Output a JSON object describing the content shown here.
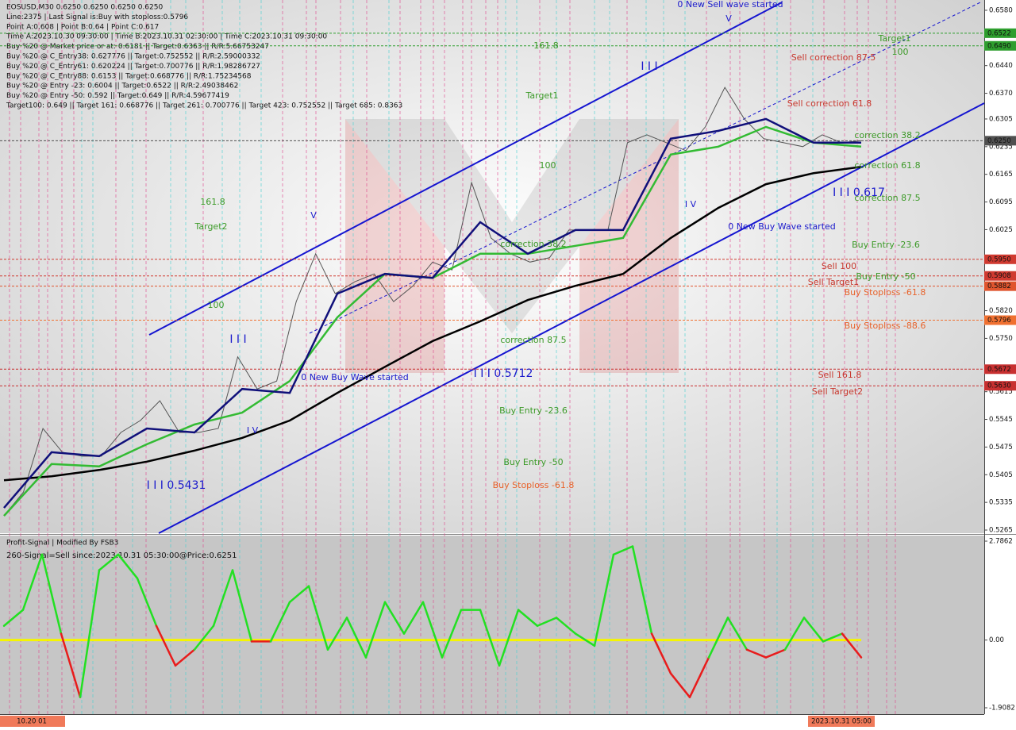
{
  "header": {
    "lines": [
      "EOSUSD,M30  0.6250 0.6250 0.6250 0.6250",
      "Line:2375 | Last Signal is:Buy with stoploss:0.5796",
      "Point A:0.608 | Point B:0.64 | Point C:0.617",
      "Time A:2023.10.30 09:30:00 | Time B:2023.10.31 02:30:00 | Time C:2023.10.31 09:30:00",
      "Buy %20 @ Market price or at: 0.6181 || Target:0.6363 || R/R:5.66753247",
      "Buy %20 @ C_Entry38: 0.627776 || Target:0.752552 || R/R:2.59000332",
      "Buy %20 @ C_Entry61: 0.620224 || Target:0.700776 || R/R:1.98286727",
      "Buy %20 @ C_Entry88: 0.6153 || Target:0.668776 || R/R:1.75234568",
      "Buy %20 @ Entry -23: 0.6004 || Target:0.6522 || R/R:2.49038462",
      "Buy %20 @ Entry -50: 0.592 || Target:0.649 || R/R:4.59677419",
      "Target100: 0.649 || Target 161: 0.668776 || Target 261: 0.700776 || Target 423: 0.752552 || Target 685: 0.8363"
    ]
  },
  "chart_data": [
    {
      "type": "line",
      "ylim": [
        0.5257,
        0.6606
      ],
      "yticks": [
        {
          "value": 0.658,
          "label": "0.6580"
        },
        {
          "value": 0.644,
          "label": "0.6440"
        },
        {
          "value": 0.637,
          "label": "0.6370"
        },
        0.6305,
        0.6235,
        0.6165,
        0.6095,
        0.6025,
        {
          "value": 0.582,
          "label": "0.5820"
        },
        {
          "value": 0.575,
          "label": "0.5750"
        },
        0.5615,
        0.5545,
        0.5475,
        0.5405,
        0.5335,
        0.5265
      ],
      "levels": [
        {
          "value": 0.6522,
          "color": "#2e9e2e"
        },
        {
          "value": 0.649,
          "label": "0.6490",
          "color": "#2e9e2e"
        },
        {
          "value": 0.625,
          "label": "0.6250",
          "color": "#505050"
        },
        {
          "value": 0.595,
          "label": "0.5950",
          "color": "#d03a30"
        },
        {
          "value": 0.5908,
          "color": "#d03a30"
        },
        {
          "value": 0.5882,
          "color": "#e0552e"
        },
        {
          "value": 0.5796,
          "color": "#f07030"
        },
        {
          "value": 0.5672,
          "color": "#c83030"
        },
        {
          "value": 0.563,
          "label": "0.5630",
          "color": "#c83030"
        }
      ],
      "series": [
        {
          "color": "#555555",
          "values": [
            0.5301,
            0.5361,
            0.5522,
            0.5462,
            0.5452,
            0.5452,
            0.5512,
            0.5542,
            0.5592,
            0.5512,
            0.5512,
            0.5522,
            0.5703,
            0.5622,
            0.5642,
            0.5843,
            0.5964,
            0.5863,
            0.5893,
            0.5913,
            0.5843,
            0.5883,
            0.5943,
            0.5923,
            0.6144,
            0.6004,
            0.5964,
            0.5943,
            0.5954,
            0.6024,
            0.6024,
            0.6024,
            0.6245,
            0.6265,
            0.6245,
            0.6225,
            0.6285,
            0.6385,
            0.6305,
            0.6255,
            0.6245,
            0.6235,
            0.6265,
            0.6245,
            0.625
          ]
        },
        {
          "color": "#000000",
          "values": [
            0.5391,
            0.5401,
            0.5417,
            0.5438,
            0.5466,
            0.5498,
            0.5542,
            0.5612,
            0.5678,
            0.5743,
            0.5793,
            0.5847,
            0.5883,
            0.5913,
            0.6004,
            0.608,
            0.614,
            0.6168,
            0.6184
          ]
        },
        {
          "color": "#33bb33",
          "values": [
            0.5301,
            0.5432,
            0.5426,
            0.5482,
            0.5532,
            0.5562,
            0.5642,
            0.5803,
            0.5913,
            0.5903,
            0.5964,
            0.5964,
            0.5984,
            0.6004,
            0.6215,
            0.6235,
            0.6285,
            0.6245,
            0.6235
          ]
        },
        {
          "color": "#10107a",
          "values": [
            0.5321,
            0.5462,
            0.5452,
            0.5522,
            0.5512,
            0.5622,
            0.5612,
            0.5863,
            0.5913,
            0.5903,
            0.6044,
            0.5964,
            0.6024,
            0.6024,
            0.6255,
            0.6275,
            0.6305,
            0.6245,
            0.6245
          ]
        }
      ],
      "annotations": [
        {
          "text": "161.8",
          "color": "#3c9a28"
        },
        {
          "text": "Target1",
          "color": "#3c9a28"
        },
        {
          "text": "100",
          "color": "#3c9a28"
        },
        {
          "text": "161.8",
          "color": "#3c9a28"
        },
        {
          "text": "Target2",
          "color": "#3c9a28"
        },
        {
          "text": "100",
          "color": "#3c9a28"
        },
        {
          "text": "0 New Buy Wave started",
          "color": "#1a1acc"
        },
        {
          "text": "I I I 0.5712",
          "color": "#1a1acc"
        },
        {
          "text": "correction 87.5",
          "color": "#3c9a28"
        },
        {
          "text": "correction 38.2",
          "color": "#3c9a28"
        },
        {
          "text": "Buy Entry -23.6",
          "color": "#3c9a28"
        },
        {
          "text": "Buy Entry -50",
          "color": "#3c9a28"
        },
        {
          "text": "Buy Stoploss -61.8",
          "color": "#e8622a"
        },
        {
          "text": "I I I 0.5431",
          "color": "#1a1acc"
        },
        {
          "text": "I V",
          "color": "#1a1acc"
        },
        {
          "text": "I I I",
          "color": "#1a1acc"
        },
        {
          "text": "V",
          "color": "#1a1acc"
        },
        {
          "text": "I I I",
          "color": "#1a1acc"
        },
        {
          "text": "I V",
          "color": "#1a1acc"
        },
        {
          "text": "V",
          "color": "#1a1acc"
        },
        {
          "text": "0 New Sell wave started",
          "color": "#1a1acc"
        },
        {
          "text": "Target1",
          "color": "#3c9a28"
        },
        {
          "text": "100",
          "color": "#3c9a28"
        },
        {
          "text": "Sell correction 87.5",
          "color": "#c8372d"
        },
        {
          "text": "Sell correction 61.8",
          "color": "#c8372d"
        },
        {
          "text": "correction 38.2",
          "color": "#3c9a28"
        },
        {
          "text": "correction 61.8",
          "color": "#3c9a28"
        },
        {
          "text": "I I I 0.617",
          "color": "#1a1acc"
        },
        {
          "text": "correction 87.5",
          "color": "#3c9a28"
        },
        {
          "text": "0 New Buy Wave started",
          "color": "#1a1acc"
        },
        {
          "text": "Buy Entry -23.6",
          "color": "#3c9a28"
        },
        {
          "text": "Sell 100",
          "color": "#c8372d"
        },
        {
          "text": "Buy Entry -50",
          "color": "#3c9a28"
        },
        {
          "text": "Sell Target1",
          "color": "#c8372d"
        },
        {
          "text": "Buy Stoploss -61.8",
          "color": "#e8622a"
        },
        {
          "text": "Buy Stoploss -88.6",
          "color": "#e8622a"
        },
        {
          "text": "Sell 161.8",
          "color": "#c8372d"
        },
        {
          "text": "Sell Target2",
          "color": "#c8372d"
        }
      ]
    },
    {
      "type": "oscillator",
      "title": "Profit-Signal | Modified By FSB3",
      "subtitle": "260-Signal=Sell since:2023.10.31 05:30:00@Price:0.6251",
      "ylim": [
        -2.087,
        2.943
      ],
      "yticks": [
        2.7862,
        {
          "value": 0,
          "label": "0.00"
        },
        -1.9082
      ],
      "color_positive": "#22e022",
      "color_negative": "#e81c1c",
      "zero_color": "#f5f500",
      "values": [
        0.4,
        0.85,
        2.41,
        0.18,
        -1.61,
        1.97,
        2.41,
        1.74,
        0.4,
        -0.72,
        -0.27,
        0.4,
        1.97,
        -0.04,
        -0.04,
        1.07,
        1.52,
        -0.27,
        0.63,
        -0.49,
        1.07,
        0.18,
        1.07,
        -0.49,
        0.85,
        0.85,
        -0.72,
        0.85,
        0.4,
        0.63,
        0.18,
        -0.16,
        2.41,
        2.64,
        0.18,
        -0.94,
        -1.61,
        -0.49,
        0.63,
        -0.27,
        -0.49,
        -0.27,
        0.63,
        -0.04,
        0.18,
        -0.49
      ],
      "x_labels": [
        "10.20 01",
        "2023.10.31 05:00"
      ]
    }
  ]
}
